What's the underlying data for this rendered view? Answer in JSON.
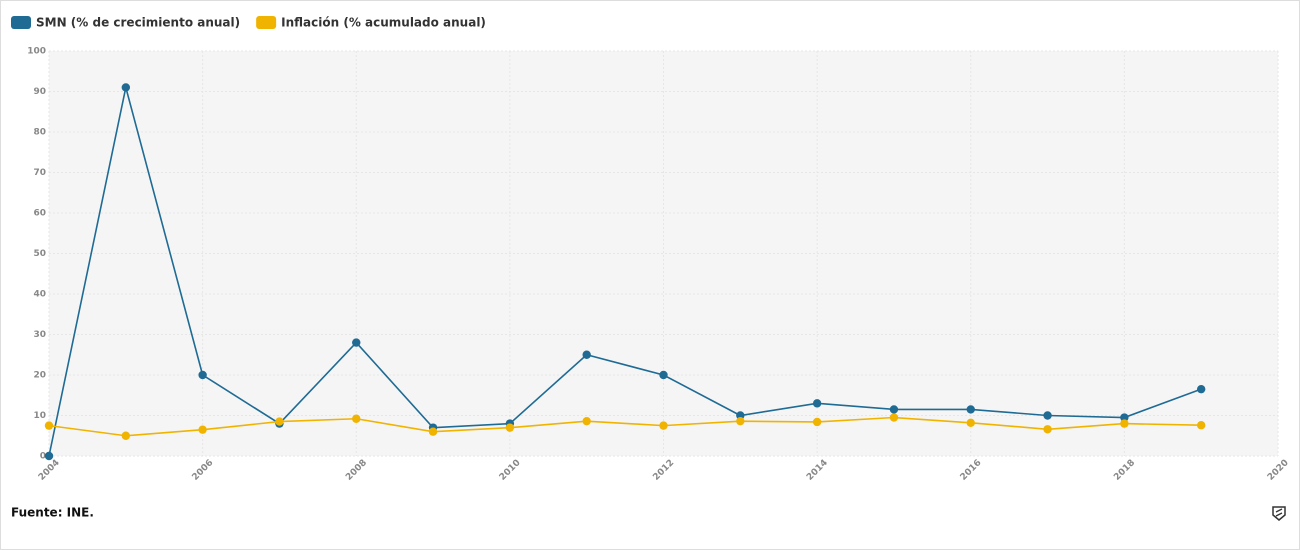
{
  "chart_data": {
    "type": "line",
    "source": "Fuente: INE.",
    "x": [
      2004,
      2005,
      2006,
      2007,
      2008,
      2009,
      2010,
      2011,
      2012,
      2013,
      2014,
      2015,
      2016,
      2017,
      2018,
      2019
    ],
    "series": [
      {
        "name": "SMN (% de crecimiento anual)",
        "color": "#1f6b94",
        "values": [
          0,
          91,
          20,
          8,
          28,
          7,
          8,
          25,
          20,
          10,
          13,
          11.5,
          11.5,
          10,
          9.5,
          16.5
        ]
      },
      {
        "name": "Inflación (% acumulado anual)",
        "color": "#f0b400",
        "values": [
          7.5,
          5,
          6.5,
          8.5,
          9.2,
          6,
          7,
          8.6,
          7.5,
          8.6,
          8.4,
          9.5,
          8.2,
          6.6,
          8,
          7.6
        ]
      }
    ],
    "xlim": [
      2004,
      2020
    ],
    "xticks": [
      2004,
      2006,
      2008,
      2010,
      2012,
      2014,
      2016,
      2018,
      2020
    ],
    "ylim": [
      0,
      100
    ],
    "yticks": [
      0,
      10,
      20,
      30,
      40,
      50,
      60,
      70,
      80,
      90,
      100
    ],
    "grid": true
  }
}
